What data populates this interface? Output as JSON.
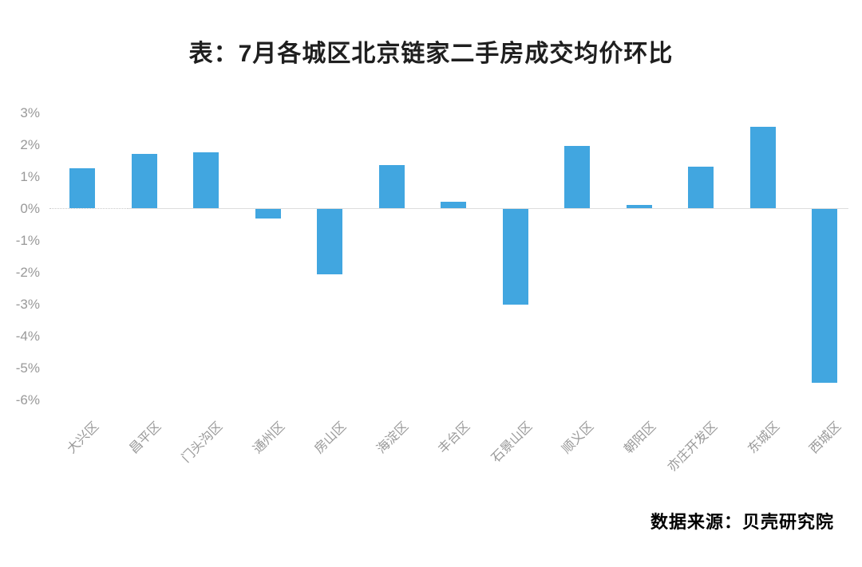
{
  "title": "表：7月各城区北京链家二手房成交均价环比",
  "source": "数据来源：贝壳研究院",
  "colors": {
    "bar": "#41A6E0",
    "zero_line": "#DDDDDD",
    "tick_label": "#999999",
    "title_text": "#1F1F1F",
    "source_text": "#000000",
    "background": "#FFFFFF"
  },
  "chart_data": {
    "type": "bar",
    "title": "表：7月各城区北京链家二手房成交均价环比",
    "categories": [
      "大兴区",
      "昌平区",
      "门头沟区",
      "通州区",
      "房山区",
      "海淀区",
      "丰台区",
      "石景山区",
      "顺义区",
      "朝阳区",
      "亦庄开发区",
      "东城区",
      "西城区"
    ],
    "values": [
      1.25,
      1.7,
      1.75,
      -0.3,
      -2.05,
      1.35,
      0.2,
      -3.0,
      1.95,
      0.1,
      1.3,
      2.55,
      -5.45
    ],
    "unit": "%",
    "xlabel": "",
    "ylabel": "",
    "ylim": [
      -6,
      3
    ],
    "yticks": [
      "3%",
      "2%",
      "1%",
      "0%",
      "-1%",
      "-2%",
      "-3%",
      "-4%",
      "-5%",
      "-6%"
    ],
    "ytick_values": [
      3,
      2,
      1,
      0,
      -1,
      -2,
      -3,
      -4,
      -5,
      -6
    ],
    "grid": false,
    "legend": "none",
    "bar_color": "#41A6E0",
    "source_note": "数据来源：贝壳研究院"
  }
}
